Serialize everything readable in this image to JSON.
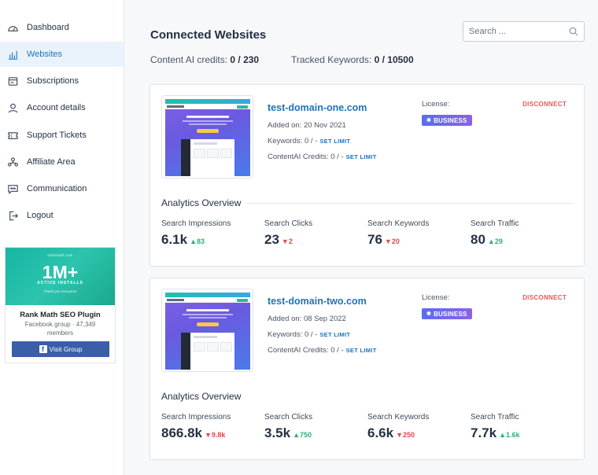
{
  "sidebar": {
    "items": [
      {
        "label": "Dashboard",
        "icon": "dashboard-icon",
        "active": false
      },
      {
        "label": "Websites",
        "icon": "websites-chart-icon",
        "active": true
      },
      {
        "label": "Subscriptions",
        "icon": "subscriptions-icon",
        "active": false
      },
      {
        "label": "Account details",
        "icon": "account-user-icon",
        "active": false
      },
      {
        "label": "Support Tickets",
        "icon": "ticket-icon",
        "active": false
      },
      {
        "label": "Affiliate Area",
        "icon": "affiliate-icon",
        "active": false
      },
      {
        "label": "Communication",
        "icon": "chat-bubble-icon",
        "active": false
      },
      {
        "label": "Logout",
        "icon": "logout-icon",
        "active": false
      }
    ],
    "promo": {
      "banner_brand": "rankmath.com",
      "banner_big": "1M+",
      "banner_sub": "ACTIVE INSTALLS",
      "banner_thanks": "Thank you everyone!",
      "title": "Rank Math SEO Plugin",
      "meta": "Facebook group · 47,349 members",
      "button_label": "Visit Group",
      "button_icon": "facebook-icon"
    }
  },
  "main": {
    "title": "Connected Websites",
    "search_placeholder": "Search ...",
    "credits_label": "Content AI credits:",
    "credits_value": "0 / 230",
    "keywords_label": "Tracked Keywords:",
    "keywords_value": "0 / 10500"
  },
  "sites": [
    {
      "domain": "test-domain-one.com",
      "added": "Added on: 20 Nov 2021",
      "keywords": "Keywords: 0 / -",
      "contentai": "ContentAI Credits: 0 / -",
      "set_limit": "SET LIMIT",
      "license_label": "License:",
      "license_badge": "BUSINESS",
      "disconnect": "DISCONNECT",
      "analytics_title": "Analytics Overview",
      "stats": [
        {
          "label": "Search Impressions",
          "value": "6.1k",
          "delta": "83",
          "dir": "up"
        },
        {
          "label": "Search Clicks",
          "value": "23",
          "delta": "2",
          "dir": "down"
        },
        {
          "label": "Search Keywords",
          "value": "76",
          "delta": "20",
          "dir": "down"
        },
        {
          "label": "Search Traffic",
          "value": "80",
          "delta": "29",
          "dir": "up"
        }
      ]
    },
    {
      "domain": "test-domain-two.com",
      "added": "Added on: 08 Sep 2022",
      "keywords": "Keywords: 0 / -",
      "contentai": "ContentAI Credits: 0 / -",
      "set_limit": "SET LIMIT",
      "license_label": "License:",
      "license_badge": "BUSINESS",
      "disconnect": "DISCONNECT",
      "analytics_title": "Analytics Overview",
      "stats": [
        {
          "label": "Search Impressions",
          "value": "866.8k",
          "delta": "9.8k",
          "dir": "down"
        },
        {
          "label": "Search Clicks",
          "value": "3.5k",
          "delta": "750",
          "dir": "up"
        },
        {
          "label": "Search Keywords",
          "value": "6.6k",
          "delta": "250",
          "dir": "down"
        },
        {
          "label": "Search Traffic",
          "value": "7.7k",
          "delta": "1.6k",
          "dir": "up"
        }
      ]
    }
  ],
  "colors": {
    "accent": "#1e73be",
    "active_bg": "#eaf3fc",
    "up": "#2db174",
    "down": "#e4484d",
    "disconnect": "#e8585a",
    "badge": "#6a67ec"
  }
}
